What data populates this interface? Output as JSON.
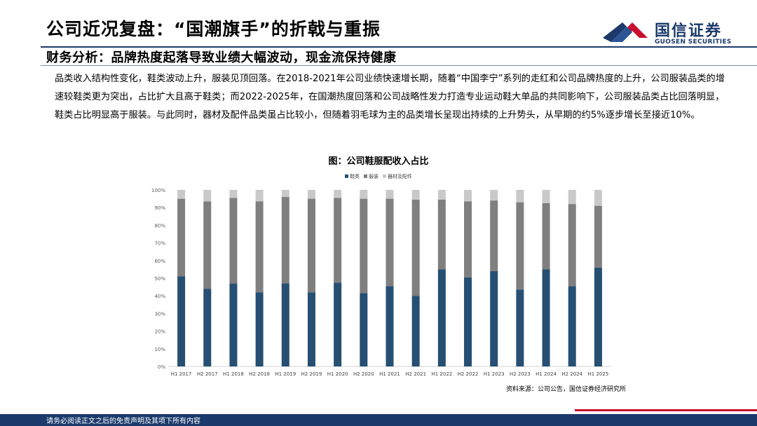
{
  "header": {
    "title": "公司近况复盘：“国潮旗手”的折戟与重振",
    "logo_cn": "国信证券",
    "logo_en": "GUOSEN SECURITIES"
  },
  "subtitle": "财务分析：品牌热度起落导致业绩大幅波动，现金流保持健康",
  "paragraph": "品类收入结构性变化，鞋类波动上升，服装见顶回落。在2018-2021年公司业绩快速增长期，随着“中国李宁”系列的走红和公司品牌热度的上升，公司服装品类的增速较鞋类更为突出，占比扩大且高于鞋类；而2022-2025年，在国潮热度回落和公司战略性发力打造专业运动鞋大单品的共同影响下，公司服装品类占比回落明显，鞋类占比明显高于服装。与此同时，器材及配件品类虽占比较小，但随着羽毛球为主的品类增长呈现出持续的上升势头，从早期的约5%逐步增长至接近10%。",
  "chart_data": {
    "type": "bar",
    "stacked": true,
    "title": "图：公司鞋服配收入占比",
    "categories": [
      "H1 2017",
      "H2 2017",
      "H1 2018",
      "H2 2018",
      "H1 2019",
      "H2 2019",
      "H1 2020",
      "H2 2020",
      "H1 2021",
      "H2 2021",
      "H1 2022",
      "H2 2022",
      "H1 2023",
      "H2 2023",
      "H1 2024",
      "H2 2024",
      "H1 2025"
    ],
    "series": [
      {
        "name": "鞋类",
        "color": "#264f73",
        "values": [
          51,
          44,
          47,
          42,
          47,
          42,
          47.5,
          41.5,
          45.5,
          40,
          55,
          50.5,
          54,
          43.5,
          55,
          45.5,
          56
        ]
      },
      {
        "name": "服装",
        "color": "#7f7f7f",
        "values": [
          44,
          49.5,
          48.5,
          51.5,
          49,
          53,
          48,
          53.5,
          49.5,
          54.5,
          39.5,
          43,
          40,
          49.5,
          37.5,
          46.5,
          35
        ]
      },
      {
        "name": "器材及配件",
        "color": "#c9c9c9",
        "values": [
          5,
          6.5,
          4.5,
          6.5,
          4,
          5,
          4.5,
          5,
          5,
          5.5,
          5.5,
          6.5,
          6,
          7,
          7.5,
          8,
          9
        ]
      }
    ],
    "y_ticks": [
      "0%",
      "10%",
      "20%",
      "30%",
      "40%",
      "50%",
      "60%",
      "70%",
      "80%",
      "90%",
      "100%"
    ],
    "ylim": [
      0,
      100
    ],
    "legend_position": "top-center",
    "grid": false
  },
  "source": "资料来源：公司公告，国信证券经济研究所",
  "footer": "请务必阅读正文之后的免责声明及其项下所有内容"
}
